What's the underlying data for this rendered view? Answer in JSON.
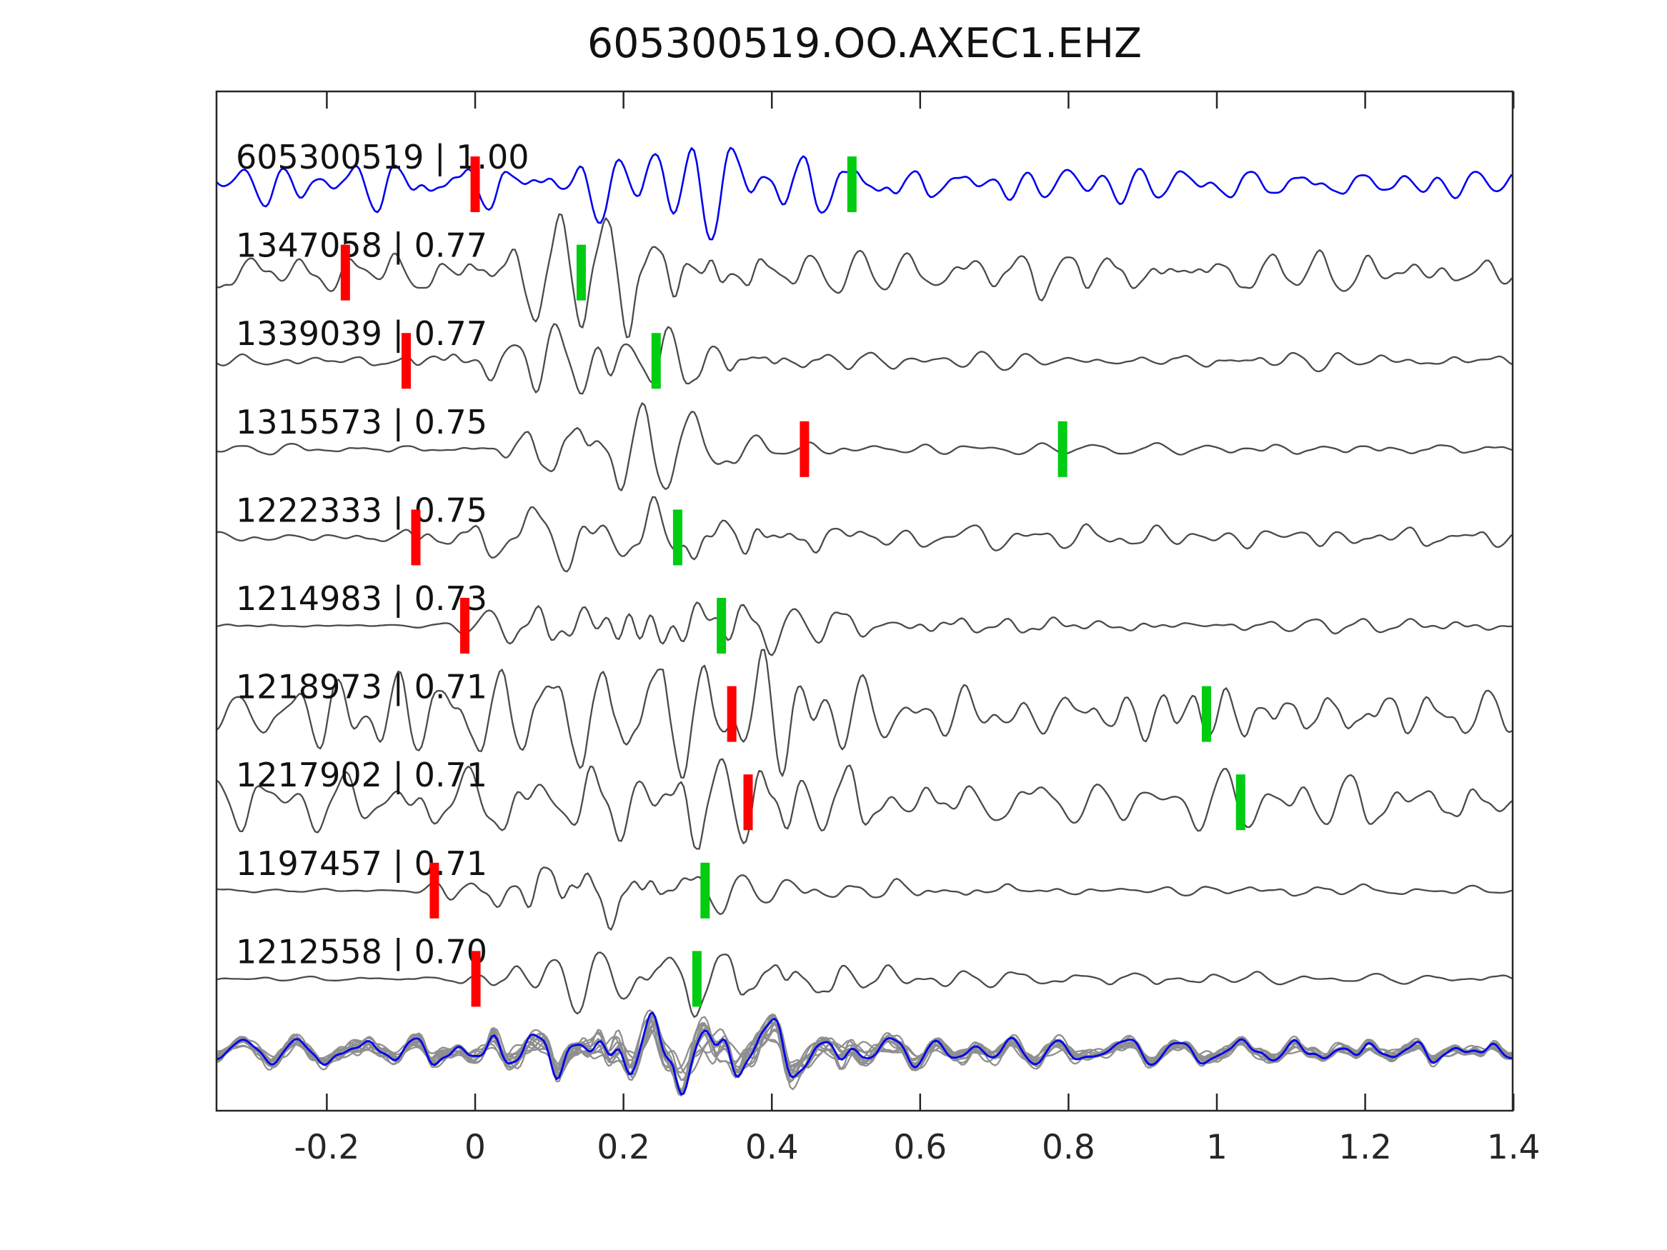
{
  "title": "605300519.OO.AXEC1.EHZ",
  "chart_data": {
    "type": "line",
    "title": "605300519.OO.AXEC1.EHZ",
    "xlabel": "",
    "ylabel": "",
    "xlim": [
      -0.349,
      1.4
    ],
    "grid": false,
    "legend": "none",
    "x_axis": {
      "tick_values": [
        -0.2,
        0,
        0.2,
        0.4,
        0.6,
        0.8,
        1,
        1.2,
        1.4
      ],
      "tick_labels": [
        "-0.2",
        "0",
        "0.2",
        "0.4",
        "0.6",
        "0.8",
        "1",
        "1.2",
        "1.4"
      ],
      "ticks_direction": "in",
      "ticks_on_top_and_bottom": true
    },
    "traces": [
      {
        "id": "605300519",
        "correlation": "1.00",
        "label": "605300519 | 1.00",
        "color": "blue",
        "red_pick": 0.0,
        "green_pick": 0.508,
        "envelope": {
          "noise": 0.3,
          "onset": -0.4,
          "peak": 0.22,
          "width": 0.17,
          "burst": 0.75,
          "coda": 0.35
        }
      },
      {
        "id": "1347058",
        "correlation": "0.77",
        "label": "1347058 | 0.77",
        "color": "gray",
        "red_pick": -0.175,
        "green_pick": 0.143,
        "envelope": {
          "noise": 0.38,
          "onset": -0.4,
          "peak": 0.18,
          "width": 0.15,
          "burst": 0.75,
          "coda": 0.45
        }
      },
      {
        "id": "1339039",
        "correlation": "0.77",
        "label": "1339039 | 0.77",
        "color": "gray",
        "red_pick": -0.093,
        "green_pick": 0.244,
        "envelope": {
          "noise": 0.14,
          "onset": -0.12,
          "peak": 0.18,
          "width": 0.13,
          "burst": 0.85,
          "coda": 0.18
        }
      },
      {
        "id": "1315573",
        "correlation": "0.75",
        "label": "1315573 | 0.75",
        "color": "gray",
        "red_pick": 0.444,
        "green_pick": 0.792,
        "envelope": {
          "noise": 0.12,
          "onset": 0.03,
          "peak": 0.19,
          "width": 0.11,
          "burst": 1.15,
          "coda": 0.1
        }
      },
      {
        "id": "1222333",
        "correlation": "0.75",
        "label": "1222333 | 0.75",
        "color": "gray",
        "red_pick": -0.08,
        "green_pick": 0.273,
        "envelope": {
          "noise": 0.16,
          "onset": -0.1,
          "peak": 0.22,
          "width": 0.15,
          "burst": 0.8,
          "coda": 0.28
        }
      },
      {
        "id": "1214983",
        "correlation": "0.73",
        "label": "1214983 | 0.73",
        "color": "gray",
        "red_pick": -0.014,
        "green_pick": 0.332,
        "envelope": {
          "noise": 0.05,
          "onset": -0.02,
          "peak": 0.27,
          "width": 0.14,
          "burst": 0.85,
          "coda": 0.3
        }
      },
      {
        "id": "1218973",
        "correlation": "0.71",
        "label": "1218973 | 0.71",
        "color": "gray",
        "red_pick": 0.346,
        "green_pick": 0.986,
        "envelope": {
          "noise": 0.6,
          "onset": -0.4,
          "peak": 0.25,
          "width": 0.15,
          "burst": 0.55,
          "coda": 0.55
        }
      },
      {
        "id": "1217902",
        "correlation": "0.71",
        "label": "1217902 | 0.71",
        "color": "gray",
        "red_pick": 0.368,
        "green_pick": 1.032,
        "envelope": {
          "noise": 0.48,
          "onset": -0.4,
          "peak": 0.3,
          "width": 0.18,
          "burst": 0.5,
          "coda": 0.5
        }
      },
      {
        "id": "1197457",
        "correlation": "0.71",
        "label": "1197457 | 0.71",
        "color": "gray",
        "red_pick": -0.055,
        "green_pick": 0.31,
        "envelope": {
          "noise": 0.06,
          "onset": -0.06,
          "peak": 0.19,
          "width": 0.13,
          "burst": 0.95,
          "coda": 0.22
        }
      },
      {
        "id": "1212558",
        "correlation": "0.70",
        "label": "1212558 | 0.70",
        "color": "gray",
        "red_pick": 0.001,
        "green_pick": 0.299,
        "envelope": {
          "noise": 0.06,
          "onset": -0.01,
          "peak": 0.25,
          "width": 0.16,
          "burst": 0.85,
          "coda": 0.25
        }
      }
    ],
    "overlay_row": {
      "description": "all detections overlaid, aligned",
      "gray_trace_count": 13,
      "has_blue_template": true,
      "envelope": {
        "noise": 0.22,
        "onset": -0.4,
        "peak": 0.27,
        "width": 0.17,
        "burst": 0.6,
        "coda": 0.4
      }
    },
    "colors": {
      "template_blue": "#0000ee",
      "detection_gray": "#4a4a4a",
      "overlay_gray": "#8f8f8f",
      "pick_red": "#ff0000",
      "pick_green": "#00cc11",
      "axis": "#262626",
      "text": "#111111"
    }
  }
}
